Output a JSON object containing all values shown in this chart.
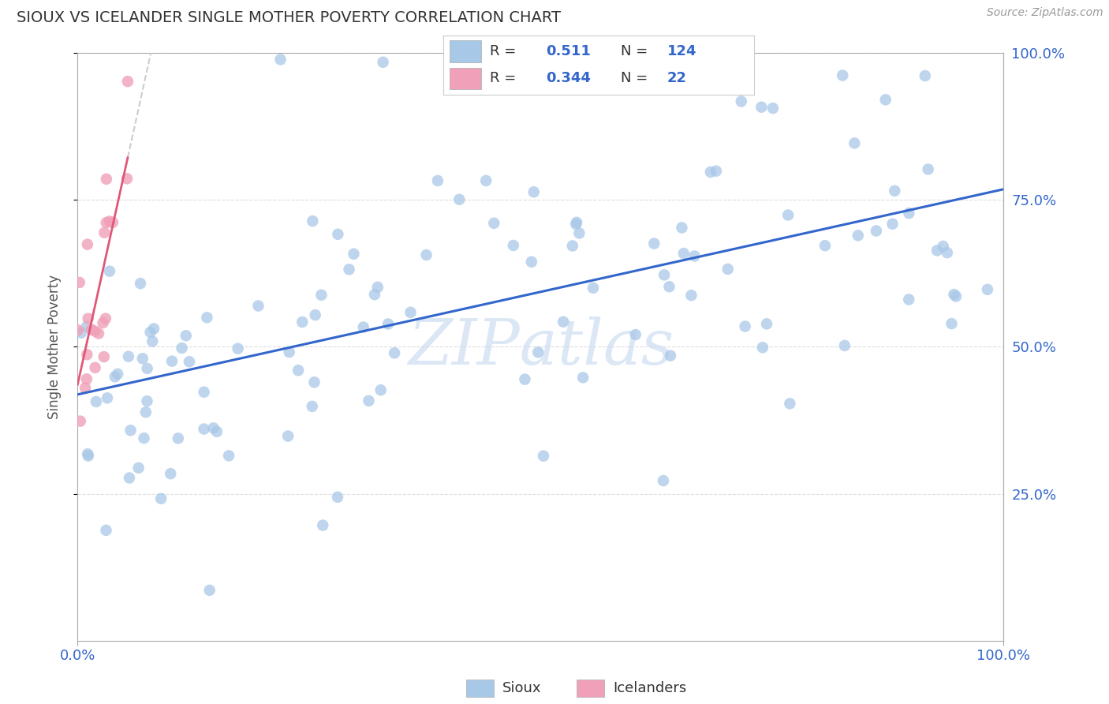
{
  "title": "SIOUX VS ICELANDER SINGLE MOTHER POVERTY CORRELATION CHART",
  "ylabel": "Single Mother Poverty",
  "source": "Source: ZipAtlas.com",
  "watermark": "ZIPatlas",
  "sioux_R": 0.511,
  "sioux_N": 124,
  "icelander_R": 0.344,
  "icelander_N": 22,
  "sioux_color": "#A8C8E8",
  "icelander_color": "#F0A0B8",
  "sioux_line_color": "#3366CC",
  "icelander_line_color": "#E05878",
  "icelander_extrap_color": "#CCCCCC",
  "background_color": "#FFFFFF",
  "grid_color": "#DDDDDD",
  "title_color": "#333333",
  "axis_label_color": "#555555",
  "tick_label_color": "#3366CC",
  "xlim": [
    0,
    1
  ],
  "ylim": [
    0,
    1
  ],
  "x_tick_labels": [
    "0.0%",
    "100.0%"
  ],
  "y_tick_labels_right": [
    "25.0%",
    "50.0%",
    "75.0%",
    "100.0%"
  ],
  "legend_text_color": "#3366CC",
  "legend_label_color": "#333333"
}
